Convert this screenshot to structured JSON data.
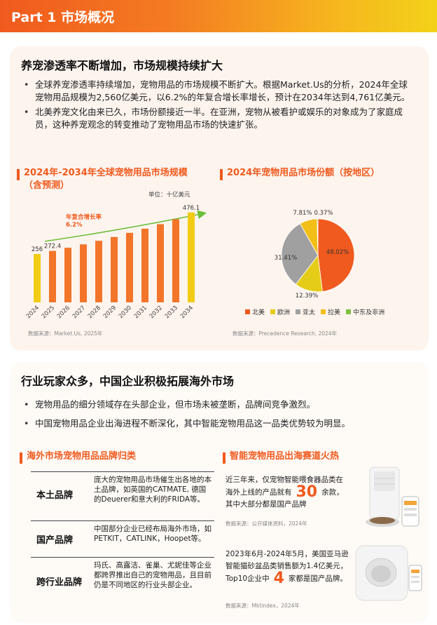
{
  "header": {
    "title": "Part 1 市场概况"
  },
  "section1": {
    "title": "养宠渗透率不断增加，市场规模持续扩大",
    "bullets": [
      "全球养宠渗透率持续增加，宠物用品的市场规模不断扩大。根据Market.Us的分析，2024年全球宠物用品规模为2,560亿美元，以6.2%的年复合增长率增长，预计在2034年达到4,761亿美元。",
      "北美养宠文化由来已久，市场份额接近一半。在亚洲，宠物从被看护或娱乐的对象成为了家庭成员，这种养宠观念的转变推动了宠物用品市场的快速扩张。"
    ]
  },
  "bar_chart": {
    "title_line1": "2024年-2034年全球宠物用品市场规模",
    "title_line2": "（含预测）",
    "unit": "单位：十亿美元",
    "cagr_label_line1": "年复合增长率",
    "cagr_label_line2": "6.2%",
    "source": "数据来源：Market.Us, 2025年",
    "colors": {
      "history": "#f2cc14",
      "forecast": "#f2752a",
      "last": "#f2cc14",
      "arrow": "#6cbf3a"
    }
  },
  "pie_chart": {
    "title": "2024年宠物用品市场份额（按地区）",
    "source": "数据来源：Precedence Research, 2024年"
  },
  "chart_data": [
    {
      "type": "bar",
      "categories": [
        "2024",
        "2025",
        "2026",
        "2027",
        "2028",
        "2029",
        "2030",
        "2031",
        "2032",
        "2033",
        "2034"
      ],
      "values": [
        256,
        272.4,
        289,
        307,
        326,
        346,
        368,
        390,
        414,
        440,
        476.1
      ],
      "labels": [
        "256",
        "272.4",
        "",
        "",
        "",
        "",
        "",
        "",
        "",
        "",
        "476.1"
      ],
      "title": "2024年-2034年全球宠物用品市场规模（含预测）",
      "ylabel": "单位：十亿美元",
      "ylim": [
        0,
        520
      ]
    },
    {
      "type": "pie",
      "categories": [
        "北美",
        "欧洲",
        "亚太",
        "拉美",
        "中东及非洲"
      ],
      "values": [
        48.02,
        12.39,
        31.41,
        7.81,
        0.37
      ],
      "labels": [
        "48.02%",
        "12.39%",
        "31.41%",
        "7.81%",
        "0.37%"
      ],
      "colors": [
        "#f05a1e",
        "#e5cc19",
        "#a0a0a0",
        "#f2bf19",
        "#7fbf3f"
      ],
      "title": "2024年宠物用品市场份额（按地区）"
    }
  ],
  "section2": {
    "title": "行业玩家众多，中国企业积极拓展海外市场",
    "bullets": [
      "宠物用品的细分领域存在头部企业，但市场未被垄断，品牌间竞争激烈。",
      "中国宠物用品企业出海进程不断深化，其中智能宠物用品这一品类优势较为明显。"
    ]
  },
  "brands": {
    "title": "海外市场宠物用品品牌归类",
    "rows": [
      {
        "category": "本土品牌",
        "desc": "庞大的宠物用品市场催生出各地的本土品牌，如英国的CATMATE, 德国的Deuerer和意大利的FRIDA等。"
      },
      {
        "category": "国产品牌",
        "desc": "中国部分企业已经布局海外市场，如PETKIT，CATLINK，Hoopet等。"
      },
      {
        "category": "跨行业品牌",
        "desc": "玛氏、高露洁、雀巢、尤妮佳等企业都跨界推出自己的宠物用品，且目前仍是不同地区的行业头部企业。"
      }
    ]
  },
  "smart": {
    "title": "智能宠物用品出海赛道火热",
    "block1": {
      "pre": "近三年来，仅宠物智能喂食器品类在海外上线的产品就有",
      "num": "30",
      "post": "余款，其中大部分都是国产品牌",
      "source": "数据来源：公开媒体资料，2024年"
    },
    "block2": {
      "pre": "2023年6月-2024年5月，美国亚马逊智能猫砂盆品类销售额为1.4亿美元，Top10企业中",
      "num": "4",
      "post": "家都是国产品牌。",
      "source": "数据来源：Mktindex，2024年"
    }
  }
}
